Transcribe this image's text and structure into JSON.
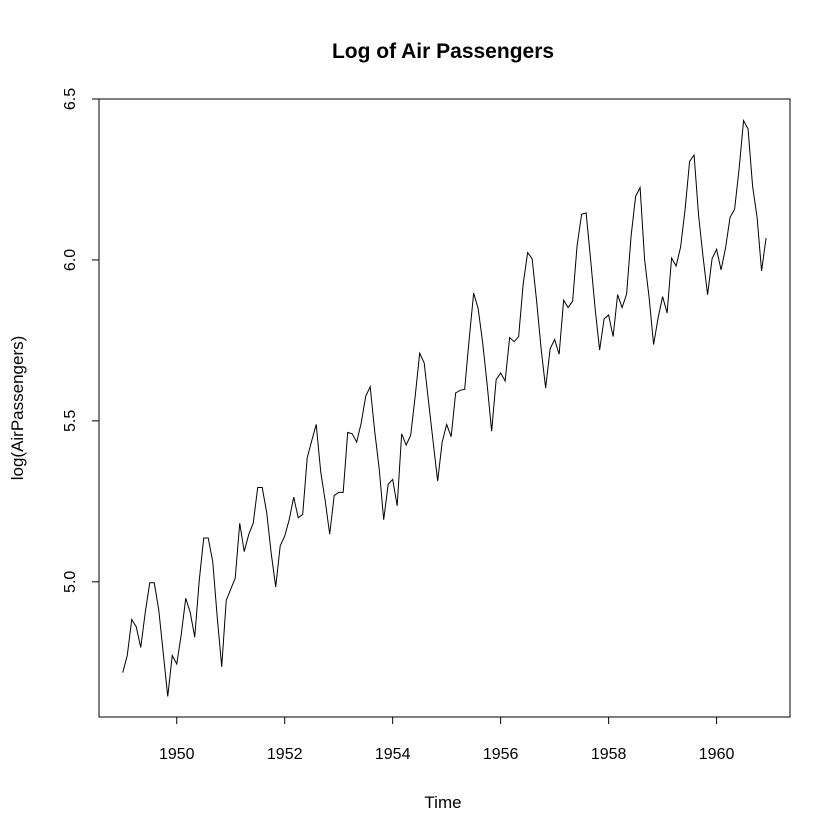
{
  "chart_data": {
    "type": "line",
    "title": "Log of Air Passengers",
    "xlabel": "Time",
    "ylabel": "log(AirPassengers)",
    "xlim": [
      1948.56,
      1961.36
    ],
    "ylim": [
      4.58,
      6.5
    ],
    "x_ticks": [
      1950,
      1952,
      1954,
      1956,
      1958,
      1960
    ],
    "y_ticks": [
      5.0,
      5.5,
      6.0,
      6.5
    ],
    "y_tick_labels": [
      "5.0",
      "5.5",
      "6.0",
      "6.5"
    ],
    "grid": false,
    "legend": "none",
    "line_color": "#000000",
    "series": [
      {
        "x_start": 1949,
        "x_step": 0.0833333,
        "values": [
          4.718,
          4.771,
          4.883,
          4.86,
          4.796,
          4.905,
          4.997,
          4.997,
          4.913,
          4.779,
          4.644,
          4.771,
          4.745,
          4.836,
          4.949,
          4.905,
          4.828,
          5.004,
          5.136,
          5.136,
          5.063,
          4.89,
          4.736,
          4.942,
          4.977,
          5.011,
          5.182,
          5.094,
          5.147,
          5.182,
          5.293,
          5.293,
          5.215,
          5.088,
          4.984,
          5.112,
          5.142,
          5.193,
          5.263,
          5.199,
          5.209,
          5.385,
          5.438,
          5.489,
          5.342,
          5.252,
          5.148,
          5.268,
          5.278,
          5.278,
          5.464,
          5.46,
          5.434,
          5.493,
          5.576,
          5.606,
          5.468,
          5.352,
          5.193,
          5.303,
          5.318,
          5.236,
          5.46,
          5.425,
          5.455,
          5.576,
          5.71,
          5.68,
          5.557,
          5.434,
          5.313,
          5.434,
          5.489,
          5.451,
          5.587,
          5.595,
          5.598,
          5.753,
          5.897,
          5.849,
          5.743,
          5.613,
          5.468,
          5.628,
          5.649,
          5.624,
          5.759,
          5.746,
          5.762,
          5.924,
          6.023,
          6.004,
          5.872,
          5.724,
          5.602,
          5.724,
          5.753,
          5.707,
          5.875,
          5.852,
          5.872,
          6.045,
          6.142,
          6.146,
          6.001,
          5.849,
          5.72,
          5.817,
          5.829,
          5.762,
          5.892,
          5.852,
          5.894,
          6.075,
          6.197,
          6.225,
          6.001,
          5.883,
          5.737,
          5.82,
          5.886,
          5.835,
          6.006,
          5.981,
          6.04,
          6.157,
          6.306,
          6.326,
          6.138,
          6.009,
          5.892,
          6.004,
          6.033,
          5.969,
          6.038,
          6.133,
          6.157,
          6.282,
          6.433,
          6.407,
          6.23,
          6.133,
          5.966,
          6.068
        ]
      }
    ]
  }
}
